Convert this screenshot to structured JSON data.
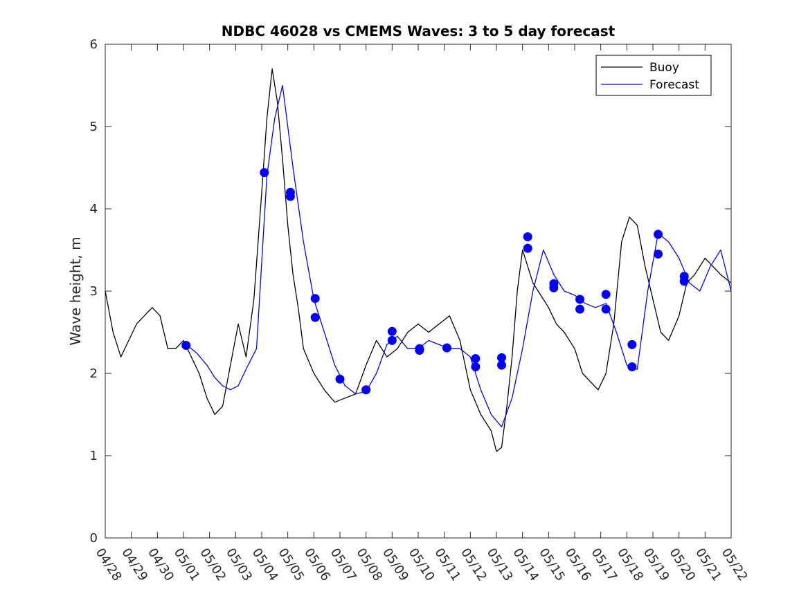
{
  "chart_data": {
    "type": "line",
    "title": "NDBC 46028 vs CMEMS Waves: 3 to 5 day forecast",
    "xlabel": "",
    "ylabel": "Wave height, m",
    "ylim": [
      0,
      6
    ],
    "yticks": [
      "0",
      "1",
      "2",
      "3",
      "4",
      "5",
      "6"
    ],
    "xlim_days": [
      "04/28",
      "05/22"
    ],
    "xticks": [
      "04/28",
      "04/29",
      "04/30",
      "05/01",
      "05/02",
      "05/03",
      "05/04",
      "05/05",
      "05/06",
      "05/07",
      "05/08",
      "05/09",
      "05/10",
      "05/11",
      "05/12",
      "05/13",
      "05/14",
      "05/15",
      "05/16",
      "05/17",
      "05/18",
      "05/19",
      "05/20",
      "05/21",
      "05/22"
    ],
    "grid": false,
    "legend_position": "top-right",
    "legend": [
      {
        "label": "Buoy",
        "color": "#000000"
      },
      {
        "label": "Forecast",
        "color": "#0000ff"
      }
    ],
    "series": [
      {
        "name": "Buoy",
        "color": "#000000",
        "x_unit": "day index from 04/28",
        "x": [
          0,
          0.3,
          0.6,
          0.9,
          1.2,
          1.5,
          1.8,
          2.1,
          2.4,
          2.7,
          3.0,
          3.3,
          3.6,
          3.9,
          4.2,
          4.5,
          4.8,
          5.1,
          5.4,
          5.7,
          6.0,
          6.2,
          6.4,
          6.6,
          6.8,
          7.0,
          7.2,
          7.4,
          7.6,
          8.0,
          8.4,
          8.8,
          9.2,
          9.6,
          10.0,
          10.4,
          10.8,
          11.2,
          11.6,
          12.0,
          12.4,
          12.8,
          13.2,
          13.6,
          14.0,
          14.4,
          14.8,
          15.0,
          15.2,
          15.4,
          15.6,
          15.8,
          16.0,
          16.2,
          16.4,
          16.6,
          16.8,
          17.0,
          17.3,
          17.6,
          18.0,
          18.3,
          18.6,
          18.9,
          19.2,
          19.5,
          19.8,
          20.1,
          20.4,
          20.7,
          21.0,
          21.3,
          21.6,
          22.0,
          22.3,
          22.6,
          23.0,
          23.3,
          23.6,
          24.0
        ],
        "values": [
          3.0,
          2.5,
          2.2,
          2.4,
          2.6,
          2.7,
          2.8,
          2.7,
          2.3,
          2.3,
          2.4,
          2.2,
          2.0,
          1.7,
          1.5,
          1.6,
          2.1,
          2.6,
          2.2,
          2.9,
          4.2,
          5.1,
          5.7,
          5.3,
          4.6,
          3.8,
          3.2,
          2.8,
          2.3,
          2.0,
          1.8,
          1.65,
          1.7,
          1.75,
          2.1,
          2.4,
          2.2,
          2.3,
          2.5,
          2.6,
          2.5,
          2.6,
          2.7,
          2.4,
          1.8,
          1.5,
          1.3,
          1.05,
          1.1,
          1.6,
          2.2,
          3.0,
          3.5,
          3.3,
          3.1,
          3.0,
          2.9,
          2.8,
          2.6,
          2.5,
          2.3,
          2.0,
          1.9,
          1.8,
          2.0,
          2.6,
          3.6,
          3.9,
          3.8,
          3.3,
          2.9,
          2.5,
          2.4,
          2.7,
          3.1,
          3.2,
          3.4,
          3.3,
          3.2,
          3.1
        ]
      },
      {
        "name": "Forecast",
        "color": "#0000ff",
        "x_unit": "day index from 04/28",
        "x": [
          3.1,
          3.5,
          3.9,
          4.2,
          4.5,
          4.8,
          5.1,
          5.4,
          5.8,
          6.2,
          6.5,
          6.8,
          7.2,
          7.6,
          8.0,
          8.4,
          8.8,
          9.2,
          9.6,
          10.0,
          10.4,
          10.8,
          11.2,
          11.6,
          12.0,
          12.4,
          12.8,
          13.2,
          13.6,
          14.0,
          14.4,
          14.8,
          15.2,
          15.6,
          16.0,
          16.4,
          16.8,
          17.2,
          17.6,
          18.0,
          18.4,
          18.8,
          19.2,
          19.6,
          20.0,
          20.4,
          20.8,
          21.2,
          21.6,
          22.0,
          22.4,
          22.8,
          23.2,
          23.6,
          24.0
        ],
        "values": [
          2.35,
          2.25,
          2.1,
          1.95,
          1.85,
          1.8,
          1.85,
          2.05,
          2.3,
          4.4,
          5.1,
          5.5,
          4.5,
          3.6,
          2.9,
          2.5,
          2.1,
          1.85,
          1.75,
          1.78,
          2.0,
          2.35,
          2.45,
          2.3,
          2.3,
          2.4,
          2.35,
          2.3,
          2.3,
          2.2,
          1.8,
          1.5,
          1.35,
          1.7,
          2.3,
          3.0,
          3.5,
          3.2,
          3.0,
          2.95,
          2.85,
          2.8,
          2.85,
          2.5,
          2.1,
          2.05,
          3.0,
          3.7,
          3.6,
          3.4,
          3.1,
          3.0,
          3.3,
          3.5,
          3.0
        ]
      }
    ],
    "forecast_markers": {
      "color": "#0000ff",
      "x": [
        3.1,
        6.1,
        7.1,
        7.1,
        8.05,
        8.05,
        9.0,
        10.0,
        11.0,
        11.0,
        12.05,
        12.05,
        13.1,
        14.2,
        14.2,
        15.2,
        15.2,
        16.2,
        16.2,
        17.2,
        17.2,
        18.2,
        18.2,
        19.2,
        19.2,
        20.2,
        20.2,
        21.2,
        21.2,
        22.2,
        22.2
      ],
      "values": [
        2.34,
        4.44,
        4.2,
        4.15,
        2.91,
        2.68,
        1.93,
        1.8,
        2.51,
        2.4,
        2.3,
        2.28,
        2.31,
        2.18,
        2.08,
        2.19,
        2.1,
        3.66,
        3.52,
        3.09,
        3.04,
        2.9,
        2.78,
        2.96,
        2.78,
        2.35,
        2.08,
        3.69,
        3.45,
        3.18,
        3.12
      ]
    }
  }
}
